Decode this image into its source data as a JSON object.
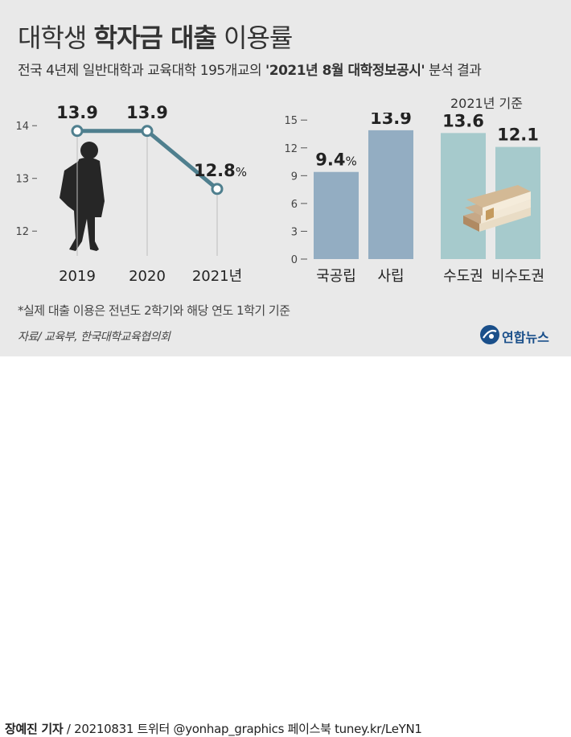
{
  "title": {
    "light1": "대학생 ",
    "bold": "학자금 대출",
    "light2": " 이용률"
  },
  "subtitle": {
    "pre": "전국 4년제 일반대학과 교육대학 195개교의 ",
    "bold": "'2021년 8월 대학정보공시'",
    "post": " 분석 결과"
  },
  "basis_note": "2021년 기준",
  "footnote": "*실제 대출 이용은 전년도 2학기와 해당 연도 1학기 기준",
  "source": "자료/ 교육부, 한국대학교육협의회",
  "logo_text": "연합뉴스",
  "credit": {
    "reporter": "장예진 기자",
    "rest": " / 20210831 트위터 @yonhap_graphics  페이스북 tuney.kr/LeYN1"
  },
  "colors": {
    "line": "#4f7f8e",
    "bar_blue": "#93adc2",
    "bar_teal": "#a6cacc",
    "background": "#e9e9e9",
    "silhouette": "#262626"
  },
  "chart_data": [
    {
      "type": "line",
      "categories": [
        "2019",
        "2020",
        "2021년"
      ],
      "values": [
        13.9,
        13.9,
        12.8
      ],
      "value_labels": [
        "13.9",
        "13.9",
        "12.8"
      ],
      "unit_suffix": "%",
      "yticks": [
        14,
        13,
        12
      ],
      "ylim": [
        11.5,
        14.4
      ],
      "title": "",
      "xlabel": "",
      "ylabel": ""
    },
    {
      "type": "bar",
      "categories": [
        "국공립",
        "사립",
        "수도권",
        "비수도권"
      ],
      "values": [
        9.4,
        13.9,
        13.6,
        12.1
      ],
      "value_labels": [
        "9.4",
        "13.9",
        "13.6",
        "12.1"
      ],
      "unit_suffix": "%",
      "yticks": [
        15,
        12,
        9,
        6,
        3,
        0
      ],
      "ylim": [
        0,
        15.8
      ],
      "title": "",
      "xlabel": "",
      "ylabel": ""
    }
  ]
}
